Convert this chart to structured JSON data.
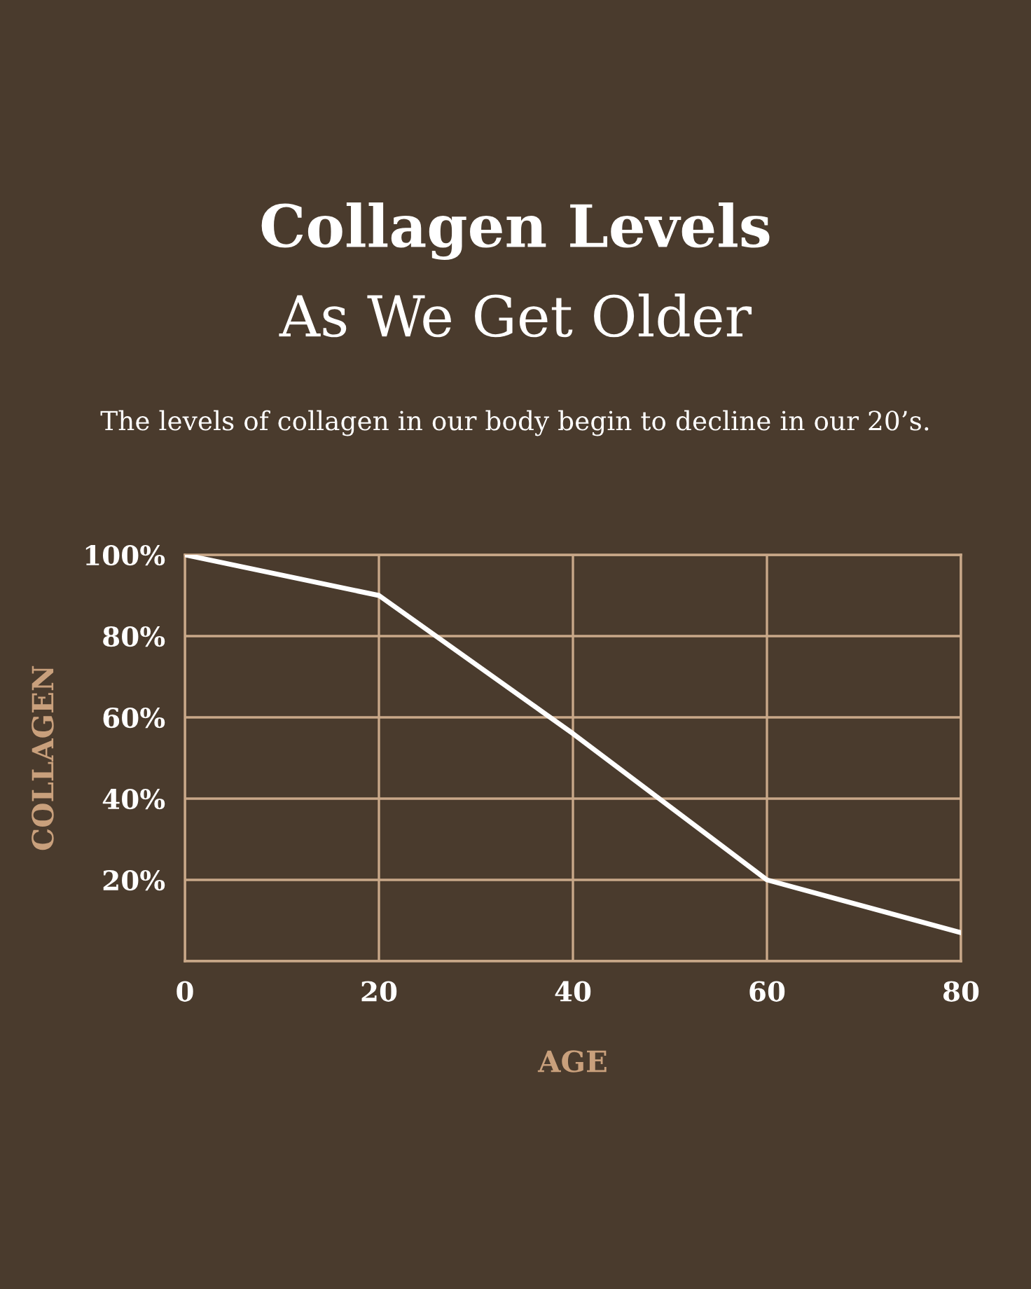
{
  "chart_data": {
    "type": "line",
    "title": "Collagen Levels",
    "subtitle": "As We Get Older",
    "annotations": [
      "The levels of collagen in our body begin to decline in our 20’s."
    ],
    "xlabel": "AGE",
    "ylabel": "COLLAGEN",
    "x": [
      0,
      20,
      40,
      60,
      80
    ],
    "series": [
      {
        "color": "#ffffff",
        "values": [
          100,
          90,
          56,
          20,
          7
        ]
      }
    ],
    "xlim": [
      0,
      80
    ],
    "xticks": [
      0,
      20,
      40,
      60,
      80
    ],
    "ylim": [
      0,
      100
    ],
    "yticks": [
      {
        "value": 0,
        "label": null
      },
      {
        "value": 20,
        "label": "20%"
      },
      {
        "value": 40,
        "label": "40%"
      },
      {
        "value": 60,
        "label": "60%"
      },
      {
        "value": 80,
        "label": "80%"
      },
      {
        "value": 100,
        "label": "100%"
      }
    ],
    "grid": true,
    "marker": "none",
    "line_style": "solid",
    "legend": false
  }
}
